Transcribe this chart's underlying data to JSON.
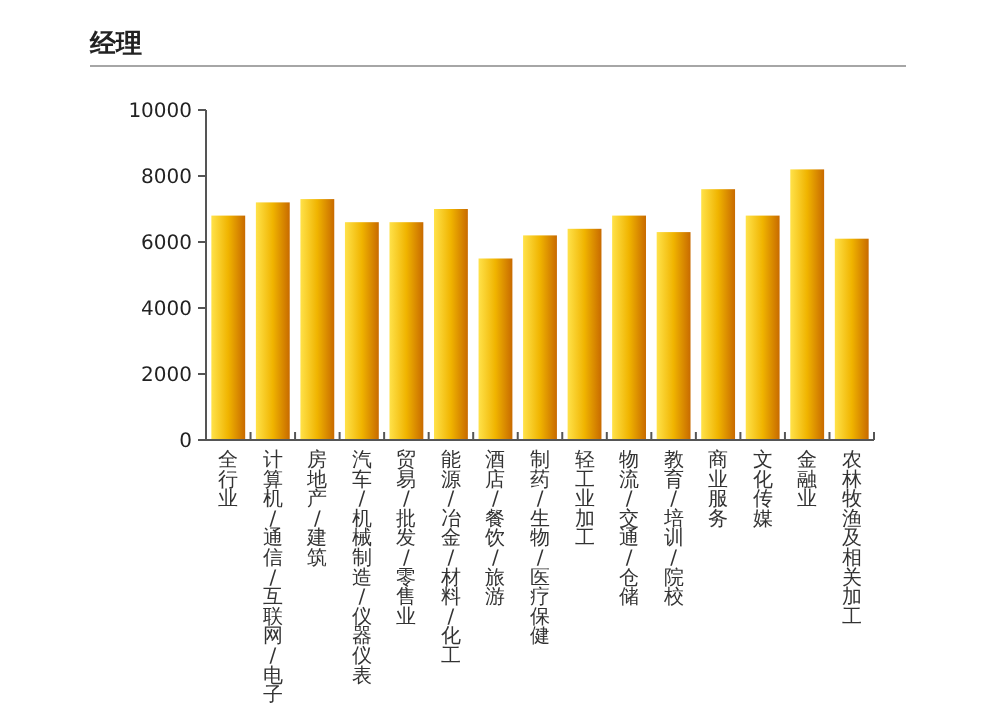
{
  "chart_data": {
    "type": "bar",
    "title": "经理",
    "categories": [
      "全行业",
      "计算机/通信/互联网/电子",
      "房地产/建筑",
      "汽车/机械制造/仪器仪表",
      "贸易/批发/零售业",
      "能源/冶金/材料/化工",
      "酒店/餐饮/旅游",
      "制药/生物/医疗保健",
      "轻工业加工",
      "物流/交通/仓储",
      "教育/培训/院校",
      "商业服务",
      "文化传媒",
      "金融业",
      "农林牧渔及相关加工"
    ],
    "values": [
      6800,
      7200,
      7300,
      6600,
      6600,
      7000,
      5500,
      6200,
      6400,
      6800,
      6300,
      7600,
      6800,
      8200,
      6100
    ],
    "color": "#f0b400",
    "ylim": [
      0,
      10000
    ],
    "yticks": [
      0,
      2000,
      4000,
      6000,
      8000,
      10000
    ],
    "grid": false
  }
}
